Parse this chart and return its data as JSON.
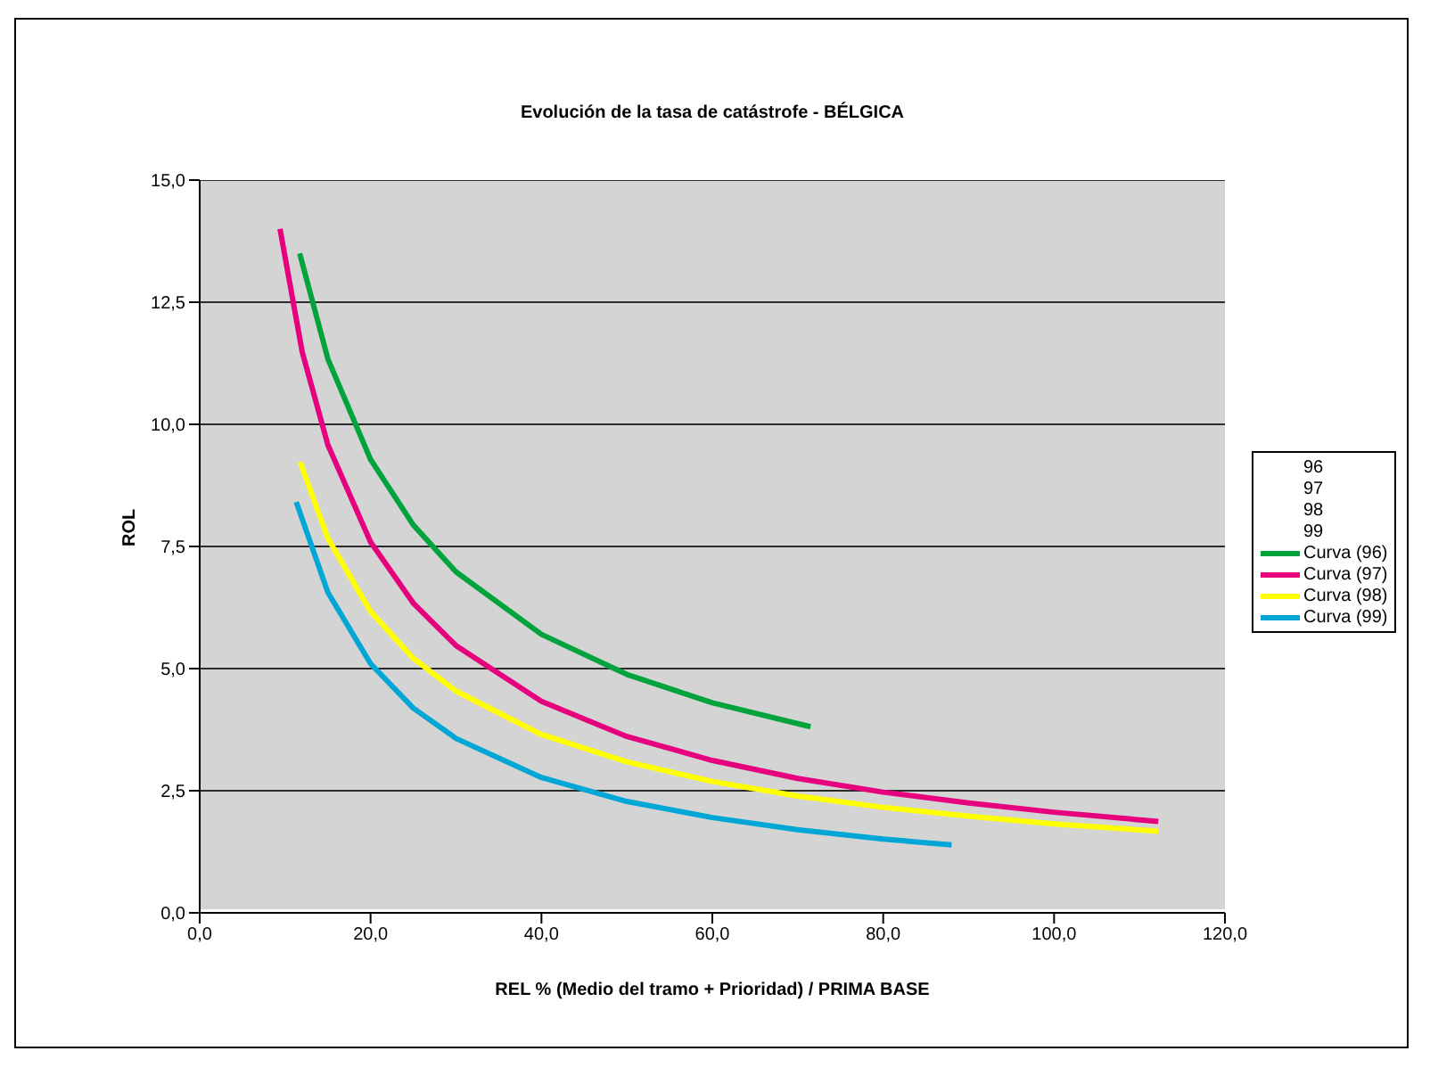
{
  "chart_data": {
    "type": "line",
    "title": "Evolución de la tasa de catástrofe - BÉLGICA",
    "xlabel": "REL % (Medio del tramo + Prioridad) / PRIMA BASE",
    "ylabel": "ROL",
    "xlim": [
      0,
      120
    ],
    "xticks": [
      {
        "value": 0,
        "label": "0,0"
      },
      {
        "value": 20,
        "label": "20,0"
      },
      {
        "value": 40,
        "label": "40,0"
      },
      {
        "value": 60,
        "label": "60,0"
      },
      {
        "value": 80,
        "label": "80,0"
      },
      {
        "value": 100,
        "label": "100,0"
      },
      {
        "value": 120,
        "label": "120,0"
      }
    ],
    "ylim": [
      0,
      15
    ],
    "yticks": [
      {
        "value": 0,
        "label": "0,0"
      },
      {
        "value": 2.5,
        "label": "2,5"
      },
      {
        "value": 5,
        "label": "5,0"
      },
      {
        "value": 7.5,
        "label": "7,5"
      },
      {
        "value": 10,
        "label": "10,0"
      },
      {
        "value": 12.5,
        "label": "12,5"
      },
      {
        "value": 15,
        "label": "15,0"
      }
    ],
    "grid": "y",
    "legend": "right",
    "marker": "none",
    "line_style": "solid",
    "series": [
      {
        "name": "96"
      },
      {
        "name": "97"
      },
      {
        "name": "98"
      },
      {
        "name": "99"
      },
      {
        "name": "Curva (96)",
        "color": "#00a33c",
        "x": [
          11.7,
          15,
          20,
          25,
          30,
          40,
          50,
          60,
          71.5
        ],
        "values": [
          13.5,
          11.34,
          9.28,
          7.94,
          6.98,
          5.7,
          4.88,
          4.3,
          3.81
        ]
      },
      {
        "name": "Curva (97)",
        "color": "#e6007e",
        "x": [
          9.4,
          12,
          15,
          20,
          25,
          30,
          40,
          50,
          60,
          70,
          80,
          90,
          100,
          112.2
        ],
        "values": [
          14.0,
          11.48,
          9.58,
          7.59,
          6.34,
          5.47,
          4.33,
          3.61,
          3.12,
          2.75,
          2.47,
          2.25,
          2.06,
          1.87
        ]
      },
      {
        "name": "Curva (98)",
        "color": "#ffff00",
        "x": [
          11.75,
          15,
          20,
          25,
          30,
          40,
          50,
          60,
          70,
          80,
          90,
          100,
          112.2
        ],
        "values": [
          9.23,
          7.67,
          6.17,
          5.21,
          4.54,
          3.65,
          3.09,
          2.69,
          2.39,
          2.16,
          1.98,
          1.82,
          1.67
        ]
      },
      {
        "name": "Curva (99)",
        "color": "#00a6d6",
        "x": [
          11.3,
          15,
          20,
          25,
          30,
          40,
          50,
          60,
          70,
          80,
          88
        ],
        "values": [
          8.41,
          6.56,
          5.1,
          4.19,
          3.57,
          2.77,
          2.28,
          1.95,
          1.7,
          1.51,
          1.39
        ]
      }
    ]
  }
}
